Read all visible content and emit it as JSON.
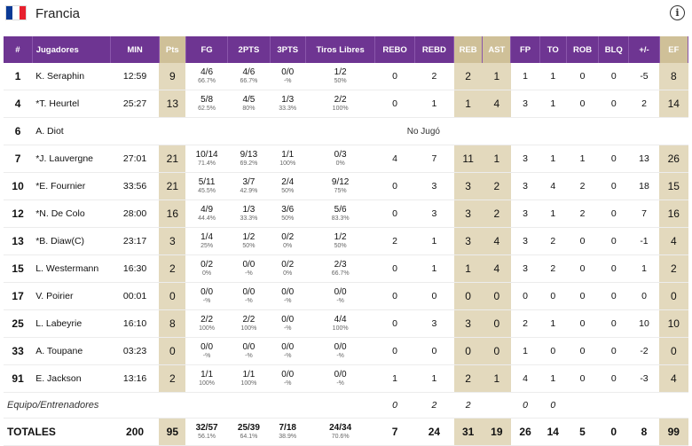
{
  "team": {
    "name": "Francia",
    "flag_colors": [
      "#0a3a96",
      "#ffffff",
      "#e8202e"
    ]
  },
  "columns": [
    "#",
    "Jugadores",
    "MIN",
    "Pts",
    "FG",
    "2PTS",
    "3PTS",
    "Tiros Libres",
    "REBO",
    "REBD",
    "REB",
    "AST",
    "FP",
    "TO",
    "ROB",
    "BLQ",
    "+/-",
    "EF"
  ],
  "highlight_columns": [
    3,
    10,
    11,
    17
  ],
  "players": [
    {
      "num": "1",
      "name": "K. Seraphin",
      "min": "12:59",
      "pts": "9",
      "fg": "4/6",
      "fg_pct": "66.7%",
      "p2": "4/6",
      "p2_pct": "66.7%",
      "p3": "0/0",
      "p3_pct": "-%",
      "ft": "1/2",
      "ft_pct": "50%",
      "rebo": "0",
      "rebd": "2",
      "reb": "2",
      "ast": "1",
      "fp": "1",
      "to": "1",
      "rob": "0",
      "blq": "0",
      "pm": "-5",
      "ef": "8"
    },
    {
      "num": "4",
      "name": "*T. Heurtel",
      "min": "25:27",
      "pts": "13",
      "fg": "5/8",
      "fg_pct": "62.5%",
      "p2": "4/5",
      "p2_pct": "80%",
      "p3": "1/3",
      "p3_pct": "33.3%",
      "ft": "2/2",
      "ft_pct": "100%",
      "rebo": "0",
      "rebd": "1",
      "reb": "1",
      "ast": "4",
      "fp": "3",
      "to": "1",
      "rob": "0",
      "blq": "0",
      "pm": "2",
      "ef": "14"
    },
    {
      "num": "6",
      "name": "A. Diot",
      "dnp": "No Jugó"
    },
    {
      "num": "7",
      "name": "*J. Lauvergne",
      "min": "27:01",
      "pts": "21",
      "fg": "10/14",
      "fg_pct": "71.4%",
      "p2": "9/13",
      "p2_pct": "69.2%",
      "p3": "1/1",
      "p3_pct": "100%",
      "ft": "0/3",
      "ft_pct": "0%",
      "rebo": "4",
      "rebd": "7",
      "reb": "11",
      "ast": "1",
      "fp": "3",
      "to": "1",
      "rob": "1",
      "blq": "0",
      "pm": "13",
      "ef": "26"
    },
    {
      "num": "10",
      "name": "*E. Fournier",
      "min": "33:56",
      "pts": "21",
      "fg": "5/11",
      "fg_pct": "45.5%",
      "p2": "3/7",
      "p2_pct": "42.9%",
      "p3": "2/4",
      "p3_pct": "50%",
      "ft": "9/12",
      "ft_pct": "75%",
      "rebo": "0",
      "rebd": "3",
      "reb": "3",
      "ast": "2",
      "fp": "3",
      "to": "4",
      "rob": "2",
      "blq": "0",
      "pm": "18",
      "ef": "15"
    },
    {
      "num": "12",
      "name": "*N. De Colo",
      "min": "28:00",
      "pts": "16",
      "fg": "4/9",
      "fg_pct": "44.4%",
      "p2": "1/3",
      "p2_pct": "33.3%",
      "p3": "3/6",
      "p3_pct": "50%",
      "ft": "5/6",
      "ft_pct": "83.3%",
      "rebo": "0",
      "rebd": "3",
      "reb": "3",
      "ast": "2",
      "fp": "3",
      "to": "1",
      "rob": "2",
      "blq": "0",
      "pm": "7",
      "ef": "16"
    },
    {
      "num": "13",
      "name": "*B. Diaw(C)",
      "min": "23:17",
      "pts": "3",
      "fg": "1/4",
      "fg_pct": "25%",
      "p2": "1/2",
      "p2_pct": "50%",
      "p3": "0/2",
      "p3_pct": "0%",
      "ft": "1/2",
      "ft_pct": "50%",
      "rebo": "2",
      "rebd": "1",
      "reb": "3",
      "ast": "4",
      "fp": "3",
      "to": "2",
      "rob": "0",
      "blq": "0",
      "pm": "-1",
      "ef": "4"
    },
    {
      "num": "15",
      "name": "L. Westermann",
      "min": "16:30",
      "pts": "2",
      "fg": "0/2",
      "fg_pct": "0%",
      "p2": "0/0",
      "p2_pct": "-%",
      "p3": "0/2",
      "p3_pct": "0%",
      "ft": "2/3",
      "ft_pct": "66.7%",
      "rebo": "0",
      "rebd": "1",
      "reb": "1",
      "ast": "4",
      "fp": "3",
      "to": "2",
      "rob": "0",
      "blq": "0",
      "pm": "1",
      "ef": "2"
    },
    {
      "num": "17",
      "name": "V. Poirier",
      "min": "00:01",
      "pts": "0",
      "fg": "0/0",
      "fg_pct": "-%",
      "p2": "0/0",
      "p2_pct": "-%",
      "p3": "0/0",
      "p3_pct": "-%",
      "ft": "0/0",
      "ft_pct": "-%",
      "rebo": "0",
      "rebd": "0",
      "reb": "0",
      "ast": "0",
      "fp": "0",
      "to": "0",
      "rob": "0",
      "blq": "0",
      "pm": "0",
      "ef": "0"
    },
    {
      "num": "25",
      "name": "L. Labeyrie",
      "min": "16:10",
      "pts": "8",
      "fg": "2/2",
      "fg_pct": "100%",
      "p2": "2/2",
      "p2_pct": "100%",
      "p3": "0/0",
      "p3_pct": "-%",
      "ft": "4/4",
      "ft_pct": "100%",
      "rebo": "0",
      "rebd": "3",
      "reb": "3",
      "ast": "0",
      "fp": "2",
      "to": "1",
      "rob": "0",
      "blq": "0",
      "pm": "10",
      "ef": "10"
    },
    {
      "num": "33",
      "name": "A. Toupane",
      "min": "03:23",
      "pts": "0",
      "fg": "0/0",
      "fg_pct": "-%",
      "p2": "0/0",
      "p2_pct": "-%",
      "p3": "0/0",
      "p3_pct": "-%",
      "ft": "0/0",
      "ft_pct": "-%",
      "rebo": "0",
      "rebd": "0",
      "reb": "0",
      "ast": "0",
      "fp": "1",
      "to": "0",
      "rob": "0",
      "blq": "0",
      "pm": "-2",
      "ef": "0"
    },
    {
      "num": "91",
      "name": "E. Jackson",
      "min": "13:16",
      "pts": "2",
      "fg": "1/1",
      "fg_pct": "100%",
      "p2": "1/1",
      "p2_pct": "100%",
      "p3": "0/0",
      "p3_pct": "-%",
      "ft": "0/0",
      "ft_pct": "-%",
      "rebo": "1",
      "rebd": "1",
      "reb": "2",
      "ast": "1",
      "fp": "4",
      "to": "1",
      "rob": "0",
      "blq": "0",
      "pm": "-3",
      "ef": "4"
    }
  ],
  "team_row": {
    "label": "Equipo/Entrenadores",
    "rebo": "0",
    "rebd": "2",
    "reb": "2",
    "fp": "0",
    "to": "0"
  },
  "totals": {
    "label": "TOTALES",
    "min": "200",
    "pts": "95",
    "fg": "32/57",
    "fg_pct": "56.1%",
    "p2": "25/39",
    "p2_pct": "64.1%",
    "p3": "7/18",
    "p3_pct": "38.9%",
    "ft": "24/34",
    "ft_pct": "70.6%",
    "rebo": "7",
    "rebd": "24",
    "reb": "31",
    "ast": "19",
    "fp": "26",
    "to": "14",
    "rob": "5",
    "blq": "0",
    "pm": "8",
    "ef": "99"
  }
}
